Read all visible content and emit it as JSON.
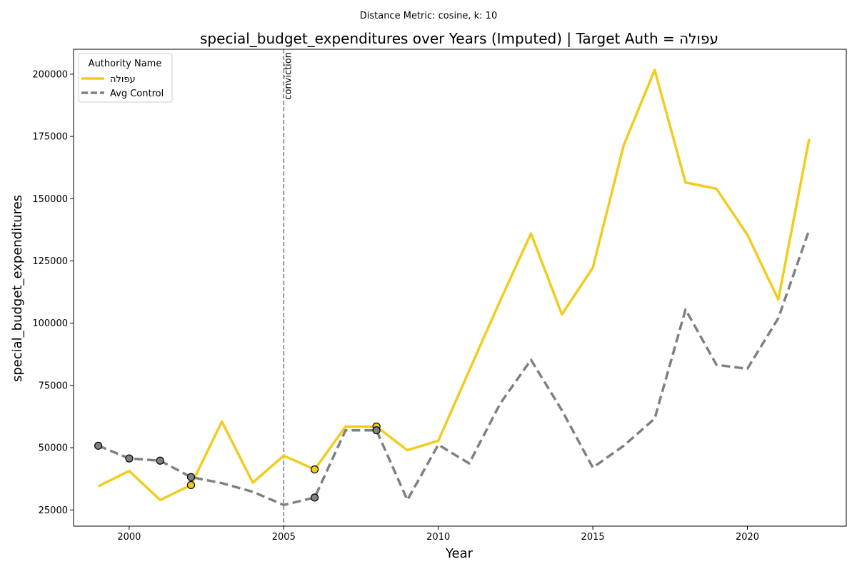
{
  "suptitle": "Distance Metric: cosine, k: 10",
  "chart_data": {
    "type": "line",
    "title": "special_budget_expenditures over Years (Imputed) | Target Auth = עפולה",
    "xlabel": "Year",
    "ylabel": "special_budget_expenditures",
    "xlim": [
      1998.2,
      2023.2
    ],
    "ylim": [
      18500,
      210000
    ],
    "xticks": [
      2000,
      2005,
      2010,
      2015,
      2020
    ],
    "yticks": [
      25000,
      50000,
      75000,
      100000,
      125000,
      150000,
      175000,
      200000
    ],
    "grid": false,
    "legend": {
      "title": "Authority Name",
      "placement": "top-left"
    },
    "x": [
      1999,
      2000,
      2001,
      2002,
      2003,
      2004,
      2005,
      2006,
      2007,
      2008,
      2009,
      2010,
      2011,
      2012,
      2013,
      2014,
      2015,
      2016,
      2017,
      2018,
      2019,
      2020,
      2021,
      2022
    ],
    "series": [
      {
        "name": "עפולה",
        "color": "#f2cc1d",
        "style": "solid",
        "values": [
          34500,
          40700,
          29000,
          35000,
          60500,
          36000,
          46800,
          41300,
          58500,
          58500,
          49000,
          52800,
          81000,
          109000,
          136000,
          103500,
          122300,
          171500,
          201700,
          156500,
          154000,
          135500,
          109500,
          174000
        ],
        "imputed_x": [
          2002,
          2006,
          2008
        ]
      },
      {
        "name": "Avg Control",
        "color": "#808080",
        "style": "dashed",
        "values": [
          50800,
          45700,
          44800,
          38200,
          35800,
          32300,
          27000,
          30000,
          57000,
          57000,
          29000,
          51200,
          43700,
          67700,
          85300,
          65000,
          42000,
          50800,
          61700,
          105500,
          83300,
          81700,
          102000,
          137500
        ],
        "imputed_x": [
          1999,
          2000,
          2001,
          2002,
          2006,
          2008
        ]
      }
    ],
    "annotations": [
      {
        "type": "vline",
        "x": 2005,
        "label": "conviction",
        "color": "#808080"
      }
    ]
  }
}
